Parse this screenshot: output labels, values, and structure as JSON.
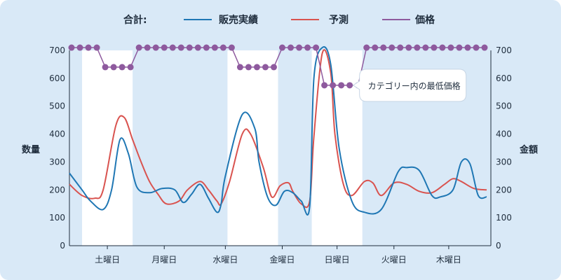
{
  "chart_data": {
    "type": "line",
    "legend": {
      "label": "合計:",
      "placement": "top-center"
    },
    "categories": [
      "土曜日",
      "月曜日",
      "水曜日",
      "金曜日",
      "日曜日",
      "火曜日",
      "木曜日"
    ],
    "x_range": [
      0,
      100
    ],
    "x_ticks": [
      9,
      22.5,
      37,
      50.5,
      63.5,
      77,
      90
    ],
    "highlight_bands": [
      [
        3,
        15
      ],
      [
        37.5,
        49.5
      ],
      [
        57.5,
        69.5
      ]
    ],
    "ylabel_left": "数量",
    "ylabel_right": "金額",
    "y_left_range": [
      0,
      700
    ],
    "y_right_range": [
      0,
      700
    ],
    "y_ticks": [
      0,
      100,
      200,
      300,
      400,
      500,
      600,
      700
    ],
    "series": [
      {
        "name": "販売実績",
        "color": "#1f77b4",
        "x": [
          0,
          3,
          5,
          8,
          10,
          12,
          14,
          16,
          19,
          22,
          25,
          27,
          29,
          31,
          33,
          35,
          36,
          37,
          41,
          44,
          45,
          47,
          49,
          51,
          53,
          55,
          57,
          58,
          60,
          62,
          64,
          67,
          70,
          74,
          78,
          80,
          83,
          86,
          88,
          91,
          93,
          95,
          97,
          99
        ],
        "y": [
          260,
          200,
          160,
          130,
          200,
          380,
          330,
          210,
          190,
          205,
          200,
          155,
          185,
          220,
          170,
          120,
          150,
          250,
          470,
          420,
          300,
          175,
          145,
          195,
          190,
          160,
          140,
          600,
          710,
          650,
          350,
          160,
          120,
          130,
          265,
          280,
          270,
          180,
          175,
          200,
          300,
          295,
          180,
          175
        ]
      },
      {
        "name": "予測",
        "color": "#d9534f",
        "x": [
          0,
          3,
          6,
          8,
          11,
          13,
          15,
          17,
          19,
          21,
          23,
          26,
          28,
          31,
          33,
          35,
          36,
          38,
          41,
          43,
          46,
          48,
          50,
          52,
          53,
          55,
          57,
          58,
          60,
          62,
          63,
          65,
          67,
          70,
          72,
          74,
          77,
          80,
          83,
          86,
          89,
          91,
          93,
          96,
          99
        ],
        "y": [
          220,
          180,
          170,
          200,
          430,
          460,
          380,
          300,
          230,
          185,
          150,
          160,
          200,
          230,
          200,
          160,
          150,
          230,
          400,
          400,
          280,
          175,
          215,
          225,
          195,
          150,
          160,
          390,
          690,
          620,
          400,
          220,
          180,
          230,
          225,
          180,
          225,
          220,
          195,
          190,
          220,
          240,
          230,
          205,
          200
        ]
      },
      {
        "name": "価格",
        "color": "#8e5a9e",
        "x": [
          0.5,
          2.5,
          4.5,
          6.5,
          8.5,
          10.5,
          12.5,
          14.5,
          16.5,
          18.5,
          20.5,
          22.5,
          24.5,
          26.5,
          28.5,
          30.5,
          32.5,
          34.5,
          36.5,
          38.5,
          40.5,
          42.5,
          44.5,
          46.5,
          48.5,
          50.5,
          52.5,
          54.5,
          56.5,
          58.5,
          60.5,
          62.5,
          64.5,
          66.5,
          68.5,
          70.5,
          72.5,
          74.5,
          76.5,
          78.5,
          80.5,
          82.5,
          84.5,
          86.5,
          88.5,
          90.5,
          92.5,
          94.5,
          96.5,
          98.5
        ],
        "y": [
          710,
          710,
          710,
          710,
          640,
          640,
          640,
          640,
          710,
          710,
          710,
          710,
          710,
          710,
          710,
          710,
          710,
          710,
          710,
          710,
          640,
          640,
          640,
          640,
          640,
          710,
          710,
          710,
          710,
          710,
          575,
          575,
          575,
          575,
          575,
          710,
          710,
          710,
          710,
          710,
          710,
          710,
          710,
          710,
          710,
          710,
          710,
          710,
          710,
          710
        ]
      }
    ],
    "annotation": {
      "text": "カテゴリー内の最低価格",
      "anchor_x": 66.5,
      "anchor_y": 575
    },
    "grid": false
  }
}
